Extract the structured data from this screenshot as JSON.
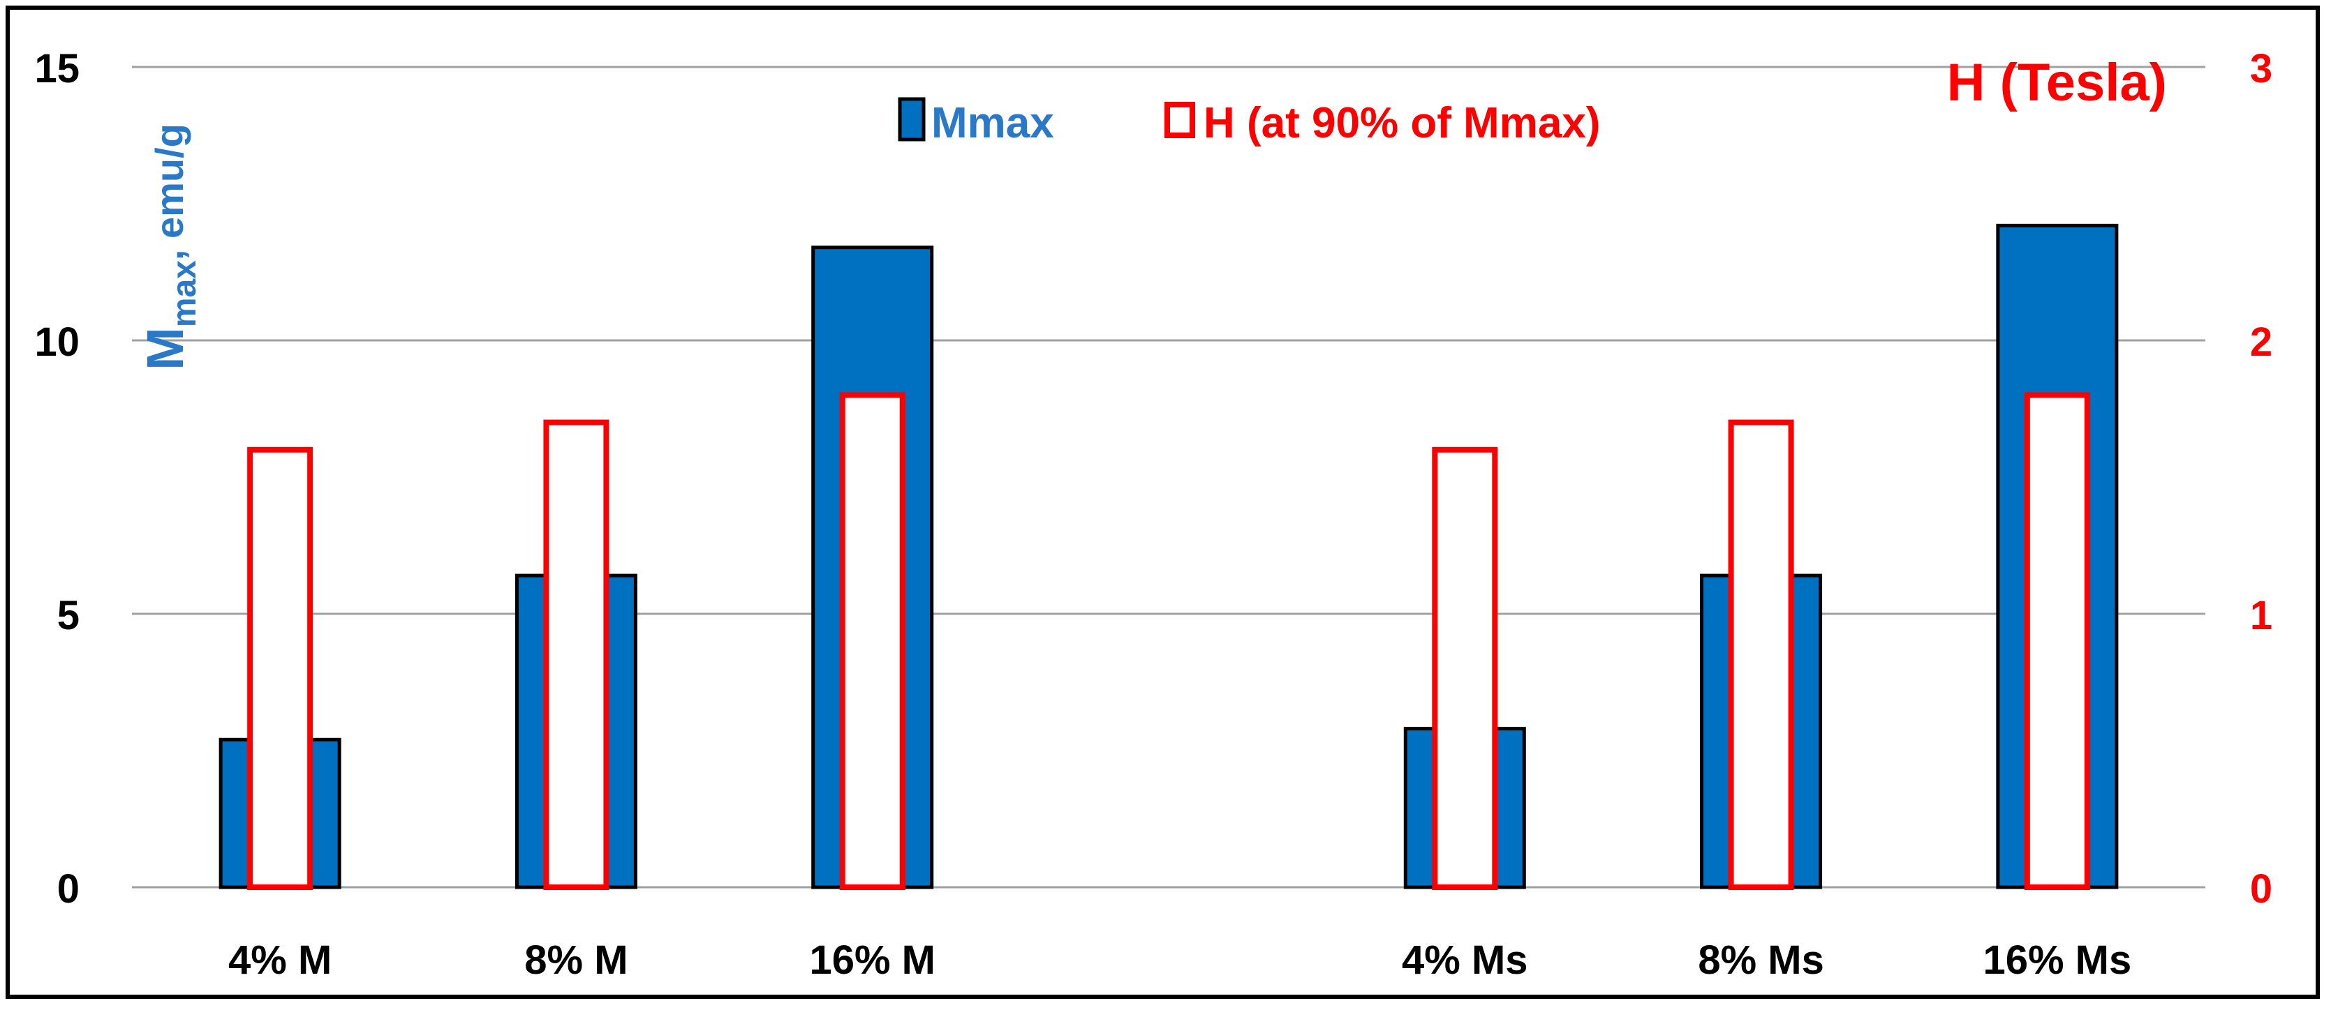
{
  "chart_data": {
    "type": "bar",
    "categories": [
      "4% M",
      "8% M",
      "16% M",
      "4% Ms",
      "8% Ms",
      "16% Ms"
    ],
    "gap_after_index": 2,
    "series": [
      {
        "name": "Mmax",
        "axis": "left",
        "values": [
          2.7,
          5.7,
          11.7,
          2.9,
          5.7,
          12.1
        ]
      },
      {
        "name": "H (at 90% of Mmax)",
        "axis": "right",
        "values": [
          1.6,
          1.7,
          1.8,
          1.6,
          1.7,
          1.8
        ]
      }
    ],
    "left_axis": {
      "label_main": "M",
      "label_sub": "max",
      "label_rest": ", emu/g",
      "min": 0,
      "max": 15,
      "ticks": [
        "0",
        "5",
        "10",
        "15"
      ],
      "color": "#2a78c8"
    },
    "right_axis": {
      "label": "H (Tesla)",
      "min": 0,
      "max": 3,
      "ticks": [
        "0",
        "1",
        "2",
        "3"
      ],
      "color": "#ff0000"
    },
    "grid": true,
    "legend_placement": "top-center",
    "colors": {
      "mmax_fill": "#0070c0",
      "h_stroke": "#ff0000",
      "h_fill": "#ffffff",
      "grid": "#a0a0a0"
    }
  }
}
